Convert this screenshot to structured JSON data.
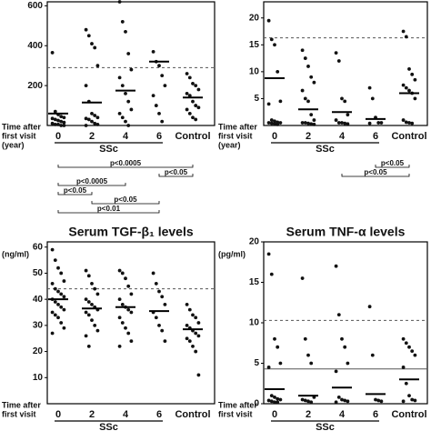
{
  "chart_data": [
    {
      "type": "dot",
      "categories": [
        "0",
        "2",
        "4",
        "6",
        "Control"
      ],
      "ylim": [
        0,
        620
      ],
      "yticks": [
        200,
        400,
        600
      ],
      "points": [
        [
          365,
          70,
          55,
          45,
          40,
          35,
          30,
          25,
          20,
          15,
          10,
          5,
          5,
          0,
          0
        ],
        [
          480,
          450,
          410,
          390,
          300,
          200,
          120,
          60,
          50,
          40,
          35,
          30,
          20,
          10,
          5,
          0
        ],
        [
          620,
          520,
          470,
          360,
          280,
          240,
          200,
          160,
          120,
          80,
          60,
          40,
          20,
          0
        ],
        [
          370,
          320,
          300,
          250,
          200,
          150,
          100,
          60,
          20
        ],
        [
          260,
          240,
          210,
          200,
          180,
          160,
          150,
          120,
          100,
          90,
          80,
          60,
          40,
          30
        ]
      ],
      "means": [
        60,
        115,
        175,
        320,
        140
      ],
      "reference_lines": [
        {
          "value": 290,
          "style": "dashed"
        }
      ],
      "x_label_lines": [
        "Time after",
        "first visit",
        "(year)"
      ],
      "group_label": "SSc",
      "comparisons": [
        {
          "groups": [
            0,
            4
          ],
          "label": "p<0.0005"
        },
        {
          "groups": [
            3,
            4
          ],
          "label": "p<0.05"
        },
        {
          "groups": [
            0,
            2
          ],
          "label": "p<0.0005"
        },
        {
          "groups": [
            0,
            1
          ],
          "label": "p<0.05"
        },
        {
          "groups": [
            1,
            3
          ],
          "label": "p<0.05"
        },
        {
          "groups": [
            0,
            3
          ],
          "label": "p<0.01"
        }
      ]
    },
    {
      "type": "dot",
      "categories": [
        "0",
        "2",
        "4",
        "6",
        "Control"
      ],
      "ylim": [
        0,
        23
      ],
      "yticks": [
        5,
        10,
        15,
        20
      ],
      "points": [
        [
          19.5,
          16,
          15,
          10,
          4.5,
          4,
          1,
          0.8,
          0.6,
          0.5,
          0.5,
          0.4,
          0.3,
          0.2
        ],
        [
          14,
          12.5,
          11,
          9,
          8,
          6.5,
          5,
          4.5,
          2,
          1,
          0.5,
          0.5,
          0.4,
          0.3,
          0.2
        ],
        [
          13.5,
          12,
          5,
          4.5,
          2,
          1,
          0.5,
          0.5,
          0.4,
          0.3
        ],
        [
          7,
          5,
          1.5,
          0.5,
          0.5,
          0.4
        ],
        [
          17.5,
          16.5,
          10.5,
          9.5,
          8.5,
          7.5,
          7,
          6.5,
          6,
          5,
          1,
          0.6,
          0.5,
          0.4
        ]
      ],
      "means": [
        8.8,
        3,
        2.5,
        1.2,
        6
      ],
      "reference_lines": [
        {
          "value": 16.3,
          "style": "dashed"
        }
      ],
      "x_label_lines": [
        "Time after",
        "first visit",
        "(year)"
      ],
      "group_label": "SSc",
      "comparisons": [
        {
          "groups": [
            3,
            4
          ],
          "label": "p<0.05"
        },
        {
          "groups": [
            2,
            4
          ],
          "label": "p<0.05"
        }
      ]
    },
    {
      "type": "dot",
      "title": "Serum TGF-β₁ levels",
      "y_label": "(ng/ml)",
      "categories": [
        "0",
        "2",
        "4",
        "6",
        "Control"
      ],
      "ylim": [
        0,
        62
      ],
      "yticks": [
        10,
        20,
        30,
        40,
        50,
        60
      ],
      "points": [
        [
          59,
          55,
          52,
          50,
          47,
          46,
          44,
          43,
          42,
          41,
          40,
          39,
          38,
          37,
          36,
          35,
          34,
          33,
          31,
          29,
          27
        ],
        [
          51,
          49,
          46,
          44,
          42,
          40,
          39,
          38,
          37,
          36,
          35,
          34,
          32,
          30,
          28,
          26,
          22
        ],
        [
          51,
          50,
          48,
          45,
          42,
          40,
          38,
          37,
          36,
          35,
          33,
          31,
          29,
          27,
          24,
          22
        ],
        [
          50,
          46,
          43,
          41,
          38,
          35,
          33,
          30,
          28,
          24
        ],
        [
          38,
          36,
          34,
          33,
          31,
          30,
          29,
          28,
          27,
          26,
          25,
          24,
          22,
          20,
          11
        ]
      ],
      "means": [
        40,
        36.5,
        37,
        35.5,
        28.5
      ],
      "reference_lines": [
        {
          "value": 44,
          "style": "dashed"
        }
      ],
      "x_label_lines": [
        "Time after",
        "first visit"
      ],
      "group_label": "SSc"
    },
    {
      "type": "dot",
      "title": "Serum TNF-α levels",
      "y_label": "(pg/ml)",
      "categories": [
        "0",
        "2",
        "4",
        "6",
        "Control"
      ],
      "ylim": [
        0,
        20
      ],
      "yticks": [
        0,
        5,
        10,
        15,
        20
      ],
      "points": [
        [
          18.5,
          16,
          8,
          7,
          5,
          4.5,
          1,
          0.8,
          0.6,
          0.5,
          0.4,
          0.3,
          0.2,
          0.2
        ],
        [
          15.5,
          8,
          6,
          5,
          0.8,
          0.5,
          0.4,
          0.3,
          0.2
        ],
        [
          17,
          11,
          8,
          7,
          5,
          4,
          0.8,
          0.5,
          0.4,
          0.3,
          0.2
        ],
        [
          12,
          6,
          0.5,
          0.4,
          0.3
        ],
        [
          8,
          7.5,
          7,
          6.5,
          6,
          4.5,
          2.5,
          1,
          0.5,
          0.4,
          0.3
        ]
      ],
      "means": [
        1.8,
        1,
        2,
        1.2,
        3
      ],
      "reference_lines": [
        {
          "value": 10.3,
          "style": "dashed"
        },
        {
          "value": 4.3,
          "style": "solid"
        }
      ],
      "x_label_lines": [
        "Time after",
        "first visit"
      ],
      "group_label": "SSc"
    }
  ]
}
